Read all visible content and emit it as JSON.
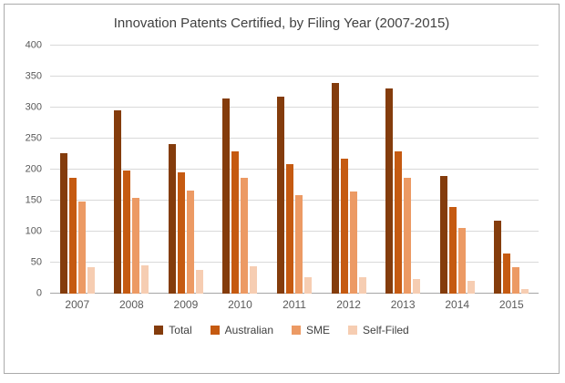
{
  "chart_data": {
    "type": "bar",
    "title": "Innovation Patents Certified, by Filing Year (2007-2015)",
    "xlabel": "",
    "ylabel": "",
    "categories": [
      "2007",
      "2008",
      "2009",
      "2010",
      "2011",
      "2012",
      "2013",
      "2014",
      "2015"
    ],
    "series": [
      {
        "name": "Total",
        "color": "#843c0c",
        "values": [
          227,
          295,
          241,
          314,
          317,
          339,
          331,
          189,
          118
        ]
      },
      {
        "name": "Australian",
        "color": "#c55a11",
        "values": [
          187,
          198,
          196,
          230,
          209,
          218,
          229,
          139,
          64
        ]
      },
      {
        "name": "SME",
        "color": "#ec9a64",
        "values": [
          148,
          155,
          166,
          187,
          159,
          164,
          187,
          106,
          43
        ]
      },
      {
        "name": "Self-Filed",
        "color": "#f6cdb2",
        "values": [
          43,
          45,
          38,
          44,
          27,
          26,
          24,
          21,
          8
        ]
      }
    ],
    "ylim": [
      0,
      400
    ],
    "yticks": [
      0,
      50,
      100,
      150,
      200,
      250,
      300,
      350,
      400
    ],
    "grid": true,
    "legend_position": "bottom"
  }
}
